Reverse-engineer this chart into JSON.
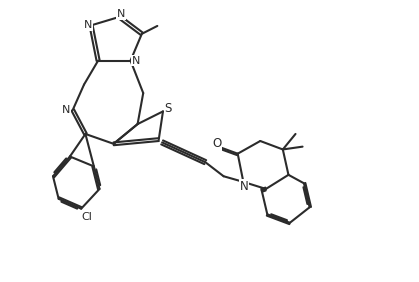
{
  "bg_color": "#ffffff",
  "line_color": "#2b2b2b",
  "line_width": 1.5,
  "figsize": [
    4.19,
    2.82
  ],
  "dpi": 100,
  "xlim": [
    0,
    13
  ],
  "ylim": [
    0,
    10
  ]
}
